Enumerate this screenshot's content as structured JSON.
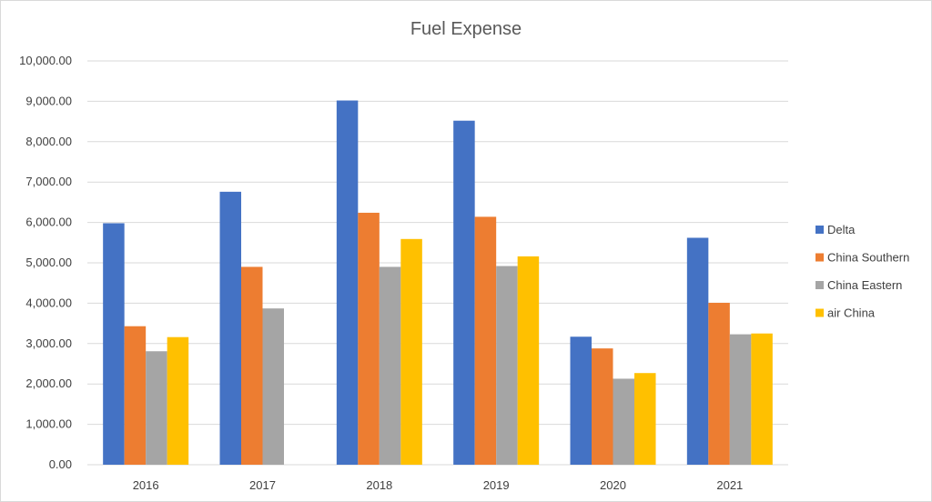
{
  "chart_data": {
    "type": "bar",
    "title": "Fuel Expense",
    "xlabel": "",
    "ylabel": "",
    "categories": [
      "2016",
      "2017",
      "2018",
      "2019",
      "2020",
      "2021"
    ],
    "yticks": [
      "0.00",
      "1,000.00",
      "2,000.00",
      "3,000.00",
      "4,000.00",
      "5,000.00",
      "6,000.00",
      "7,000.00",
      "8,000.00",
      "9,000.00",
      "10,000.00"
    ],
    "ylim": [
      0,
      10000
    ],
    "grid": true,
    "legend_position": "right",
    "series": [
      {
        "name": "Delta",
        "color": "#4472C4",
        "values": [
          5980,
          6760,
          9020,
          8520,
          3170,
          5620
        ]
      },
      {
        "name": "China Southern",
        "color": "#ED7D31",
        "values": [
          3430,
          4900,
          6240,
          6140,
          2880,
          4010
        ]
      },
      {
        "name": "China Eastern",
        "color": "#A5A5A5",
        "values": [
          2810,
          3870,
          4900,
          4920,
          2130,
          3230
        ]
      },
      {
        "name": "air China",
        "color": "#FFC000",
        "values": [
          3160,
          null,
          5590,
          5160,
          2270,
          3250
        ]
      }
    ]
  }
}
